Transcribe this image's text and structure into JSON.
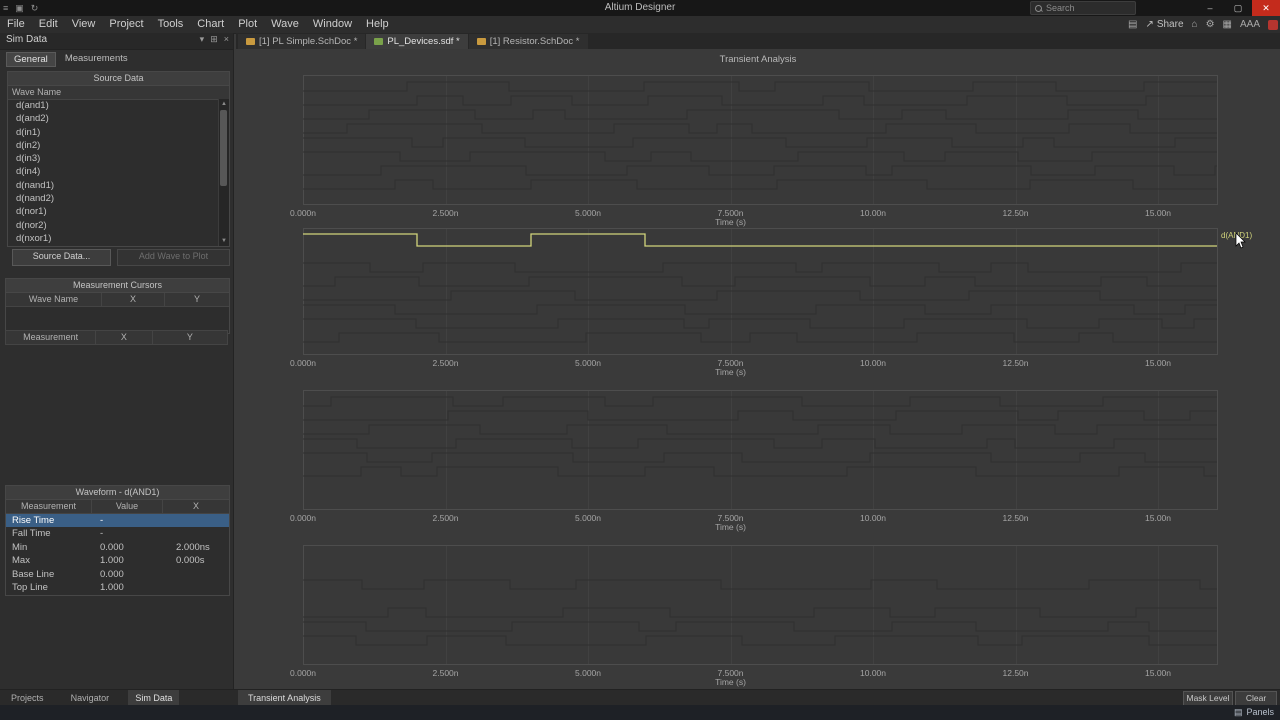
{
  "titlebar": {
    "title": "Altium Designer",
    "search_placeholder": "Search"
  },
  "menubar": {
    "items": [
      "File",
      "Edit",
      "View",
      "Project",
      "Tools",
      "Chart",
      "Plot",
      "Wave",
      "Window",
      "Help"
    ],
    "share_label": "Share",
    "aaa_label": "AAA"
  },
  "sim_panel": {
    "title": "Sim Data",
    "tabs": [
      "General",
      "Measurements"
    ],
    "source_data": {
      "header": "Source Data",
      "column": "Wave Name",
      "waves": [
        "d(and1)",
        "d(and2)",
        "d(in1)",
        "d(in2)",
        "d(in3)",
        "d(in4)",
        "d(nand1)",
        "d(nand2)",
        "d(nor1)",
        "d(nor2)",
        "d(nxor1)"
      ]
    },
    "buttons": {
      "source_data": "Source Data...",
      "add_wave": "Add Wave to Plot"
    },
    "measurement_cursors": {
      "header": "Measurement Cursors",
      "columns": [
        "Wave Name",
        "X",
        "Y"
      ]
    },
    "measurement_table": {
      "columns": [
        "Measurement",
        "X",
        "Y"
      ]
    },
    "waveform_section": {
      "header": "Waveform - d(AND1)",
      "columns": [
        "Measurement",
        "Value",
        "X"
      ],
      "rows": [
        {
          "name": "Rise Time",
          "value": "-",
          "x": "",
          "selected": true
        },
        {
          "name": "Fall Time",
          "value": "-",
          "x": "",
          "selected": false
        },
        {
          "name": "Min",
          "value": "0.000",
          "x": "2.000ns",
          "selected": false
        },
        {
          "name": "Max",
          "value": "1.000",
          "x": "0.000s",
          "selected": false
        },
        {
          "name": "Base Line",
          "value": "0.000",
          "x": "",
          "selected": false
        },
        {
          "name": "Top Line",
          "value": "1.000",
          "x": "",
          "selected": false
        }
      ]
    },
    "bottom_tabs": [
      {
        "label": "Projects",
        "active": false
      },
      {
        "label": "Navigator",
        "active": false
      },
      {
        "label": "Sim Data",
        "active": true
      }
    ]
  },
  "doc_tabs": [
    {
      "label": "[1] PL Simple.SchDoc *",
      "active": false,
      "icon_color": "#c99a3f"
    },
    {
      "label": "PL_Devices.sdf *",
      "active": true,
      "icon_color": "#7aa24a"
    },
    {
      "label": "[1] Resistor.SchDoc *",
      "active": false,
      "icon_color": "#c99a3f"
    }
  ],
  "chart_data": {
    "type": "line",
    "title": "Transient Analysis",
    "xlabel": "Time (s)",
    "x_ticks": [
      "0.000n",
      "2.500n",
      "5.000n",
      "7.500n",
      "10.00n",
      "12.50n",
      "15.00n"
    ],
    "x_tick_values_ns": [
      0,
      2.5,
      5,
      7.5,
      10,
      12.5,
      15
    ],
    "x_range_ns": [
      0,
      16.05
    ],
    "panel_count": 4,
    "grid": true,
    "highlight_series": {
      "name": "d(AND1)",
      "panel_index": 1,
      "color": "#d2d47c",
      "times_ns": [
        0,
        2,
        4,
        6,
        16.05
      ],
      "levels": [
        1,
        0,
        1,
        0
      ]
    },
    "background_trace_seeds": [
      11,
      23,
      37,
      51
    ]
  },
  "bottom_bar": {
    "tab": "Transient Analysis",
    "mask_level": "Mask Level",
    "clear": "Clear"
  },
  "statusbar": {
    "panels": "Panels"
  }
}
